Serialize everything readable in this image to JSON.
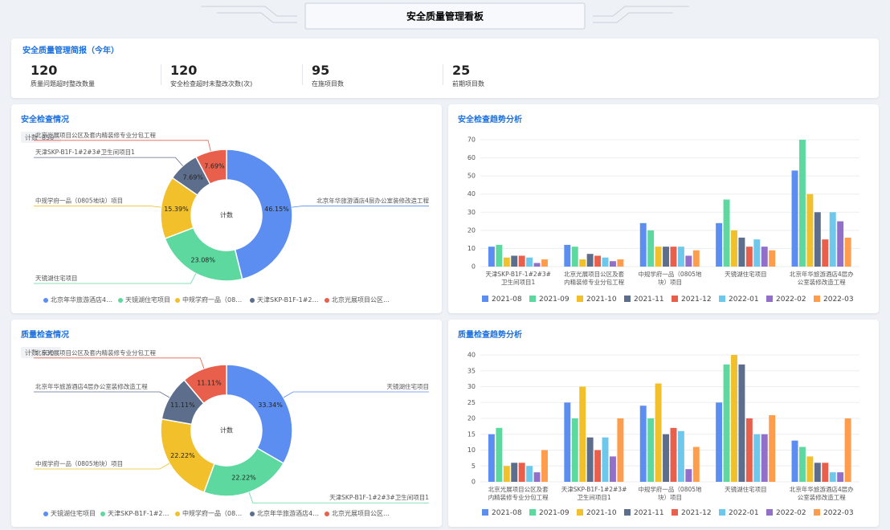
{
  "header": {
    "title": "安全质量管理看板"
  },
  "summary": {
    "title": "安全质量管理简报（今年）",
    "items": [
      {
        "value": 120,
        "label": "质量问题超时整改数量"
      },
      {
        "value": 120,
        "label": "安全检查超时未整改次数(次)"
      },
      {
        "value": 95,
        "label": "在施项目数"
      },
      {
        "value": 25,
        "label": "前期项目数"
      }
    ]
  },
  "chart_data": [
    {
      "type": "donut",
      "title": "安全检查情况",
      "count_label": "计数",
      "count": 850,
      "categories": [
        "北京年华旅游酒店4层办公室装修改造工程",
        "天镜湖住宅项目",
        "中规学府一品（0805地块）项目",
        "天津SKP-B1F-1#2#3#卫生间项目1",
        "北京光展项目公区及套内精装修专业分包工程"
      ],
      "values": [
        46.15,
        23.08,
        15.39,
        7.69,
        7.69
      ],
      "value_labels": [
        "46.15%",
        "23.08%",
        "15.39%",
        "7.69%",
        "7.69%"
      ],
      "colors": [
        "#5b8ef0",
        "#5dd9a0",
        "#f2c02a",
        "#5d6e8c",
        "#e8604c"
      ]
    },
    {
      "type": "bar",
      "title": "安全检查趋势分析",
      "categories": [
        "天津SKP-B1F-1#2#3#卫生间项目1",
        "北京光展项目公区及套内精装修专业分包工程",
        "中规学府一品（0805地块）项目",
        "天镜湖住宅项目",
        "北京年华旅游酒店4层办公室装修改造工程"
      ],
      "series": [
        {
          "name": "2021-08",
          "color": "#5b8ef0",
          "values": [
            11,
            12,
            24,
            24,
            53
          ]
        },
        {
          "name": "2021-09",
          "color": "#5dd9a0",
          "values": [
            12,
            11,
            20,
            37,
            70
          ]
        },
        {
          "name": "2021-10",
          "color": "#f2c02a",
          "values": [
            5,
            4,
            11,
            20,
            40
          ]
        },
        {
          "name": "2021-11",
          "color": "#5d6e8c",
          "values": [
            6,
            7,
            11,
            16,
            30
          ]
        },
        {
          "name": "2021-12",
          "color": "#e8604c",
          "values": [
            6,
            6,
            11,
            11,
            15
          ]
        },
        {
          "name": "2022-01",
          "color": "#6dc8ec",
          "values": [
            5,
            5,
            11,
            15,
            30
          ]
        },
        {
          "name": "2022-02",
          "color": "#9270ca",
          "values": [
            2,
            3,
            6,
            11,
            25
          ]
        },
        {
          "name": "2022-03",
          "color": "#ff9d4d",
          "values": [
            4,
            4,
            9,
            9,
            16
          ]
        }
      ],
      "ylim": [
        0,
        70
      ],
      "yticks": [
        0,
        10,
        20,
        30,
        40,
        50,
        60,
        70
      ],
      "grid": true
    },
    {
      "type": "donut",
      "title": "质量检查情况",
      "count_label": "计数",
      "count": 630,
      "categories": [
        "天镜湖住宅项目",
        "天津SKP-B1F-1#2#3#卫生间项目1",
        "中规学府一品（0805地块）项目",
        "北京年华旅游酒店4层办公室装修改造工程",
        "北京光展项目公区及套内精装修专业分包工程"
      ],
      "values": [
        33.34,
        22.22,
        22.22,
        11.11,
        11.11
      ],
      "value_labels": [
        "33.34%",
        "22.22%",
        "22.22%",
        "11.11%",
        "11.11%"
      ],
      "colors": [
        "#5b8ef0",
        "#5dd9a0",
        "#f2c02a",
        "#5d6e8c",
        "#e8604c"
      ]
    },
    {
      "type": "bar",
      "title": "质量检查趋势分析",
      "categories": [
        "北京光展项目公区及套内精装修专业分包工程",
        "天津SKP-B1F-1#2#3#卫生间项目1",
        "中规学府一品（0805地块）项目",
        "天镜湖住宅项目",
        "北京年华旅游酒店4层办公室装修改造工程"
      ],
      "series": [
        {
          "name": "2021-08",
          "color": "#5b8ef0",
          "values": [
            15,
            25,
            24,
            25,
            13
          ]
        },
        {
          "name": "2021-09",
          "color": "#5dd9a0",
          "values": [
            17,
            20,
            20,
            37,
            11
          ]
        },
        {
          "name": "2021-10",
          "color": "#f2c02a",
          "values": [
            5,
            30,
            31,
            40,
            8
          ]
        },
        {
          "name": "2021-11",
          "color": "#5d6e8c",
          "values": [
            6,
            14,
            15,
            37,
            6
          ]
        },
        {
          "name": "2021-12",
          "color": "#e8604c",
          "values": [
            6,
            10,
            17,
            20,
            6
          ]
        },
        {
          "name": "2022-01",
          "color": "#6dc8ec",
          "values": [
            5,
            14,
            16,
            15,
            3
          ]
        },
        {
          "name": "2022-02",
          "color": "#9270ca",
          "values": [
            3,
            8,
            4,
            15,
            3
          ]
        },
        {
          "name": "2022-03",
          "color": "#ff9d4d",
          "values": [
            10,
            20,
            11,
            21,
            20
          ]
        }
      ],
      "ylim": [
        0,
        40
      ],
      "yticks": [
        0,
        5,
        10,
        15,
        20,
        25,
        30,
        35,
        40
      ],
      "grid": true
    }
  ]
}
